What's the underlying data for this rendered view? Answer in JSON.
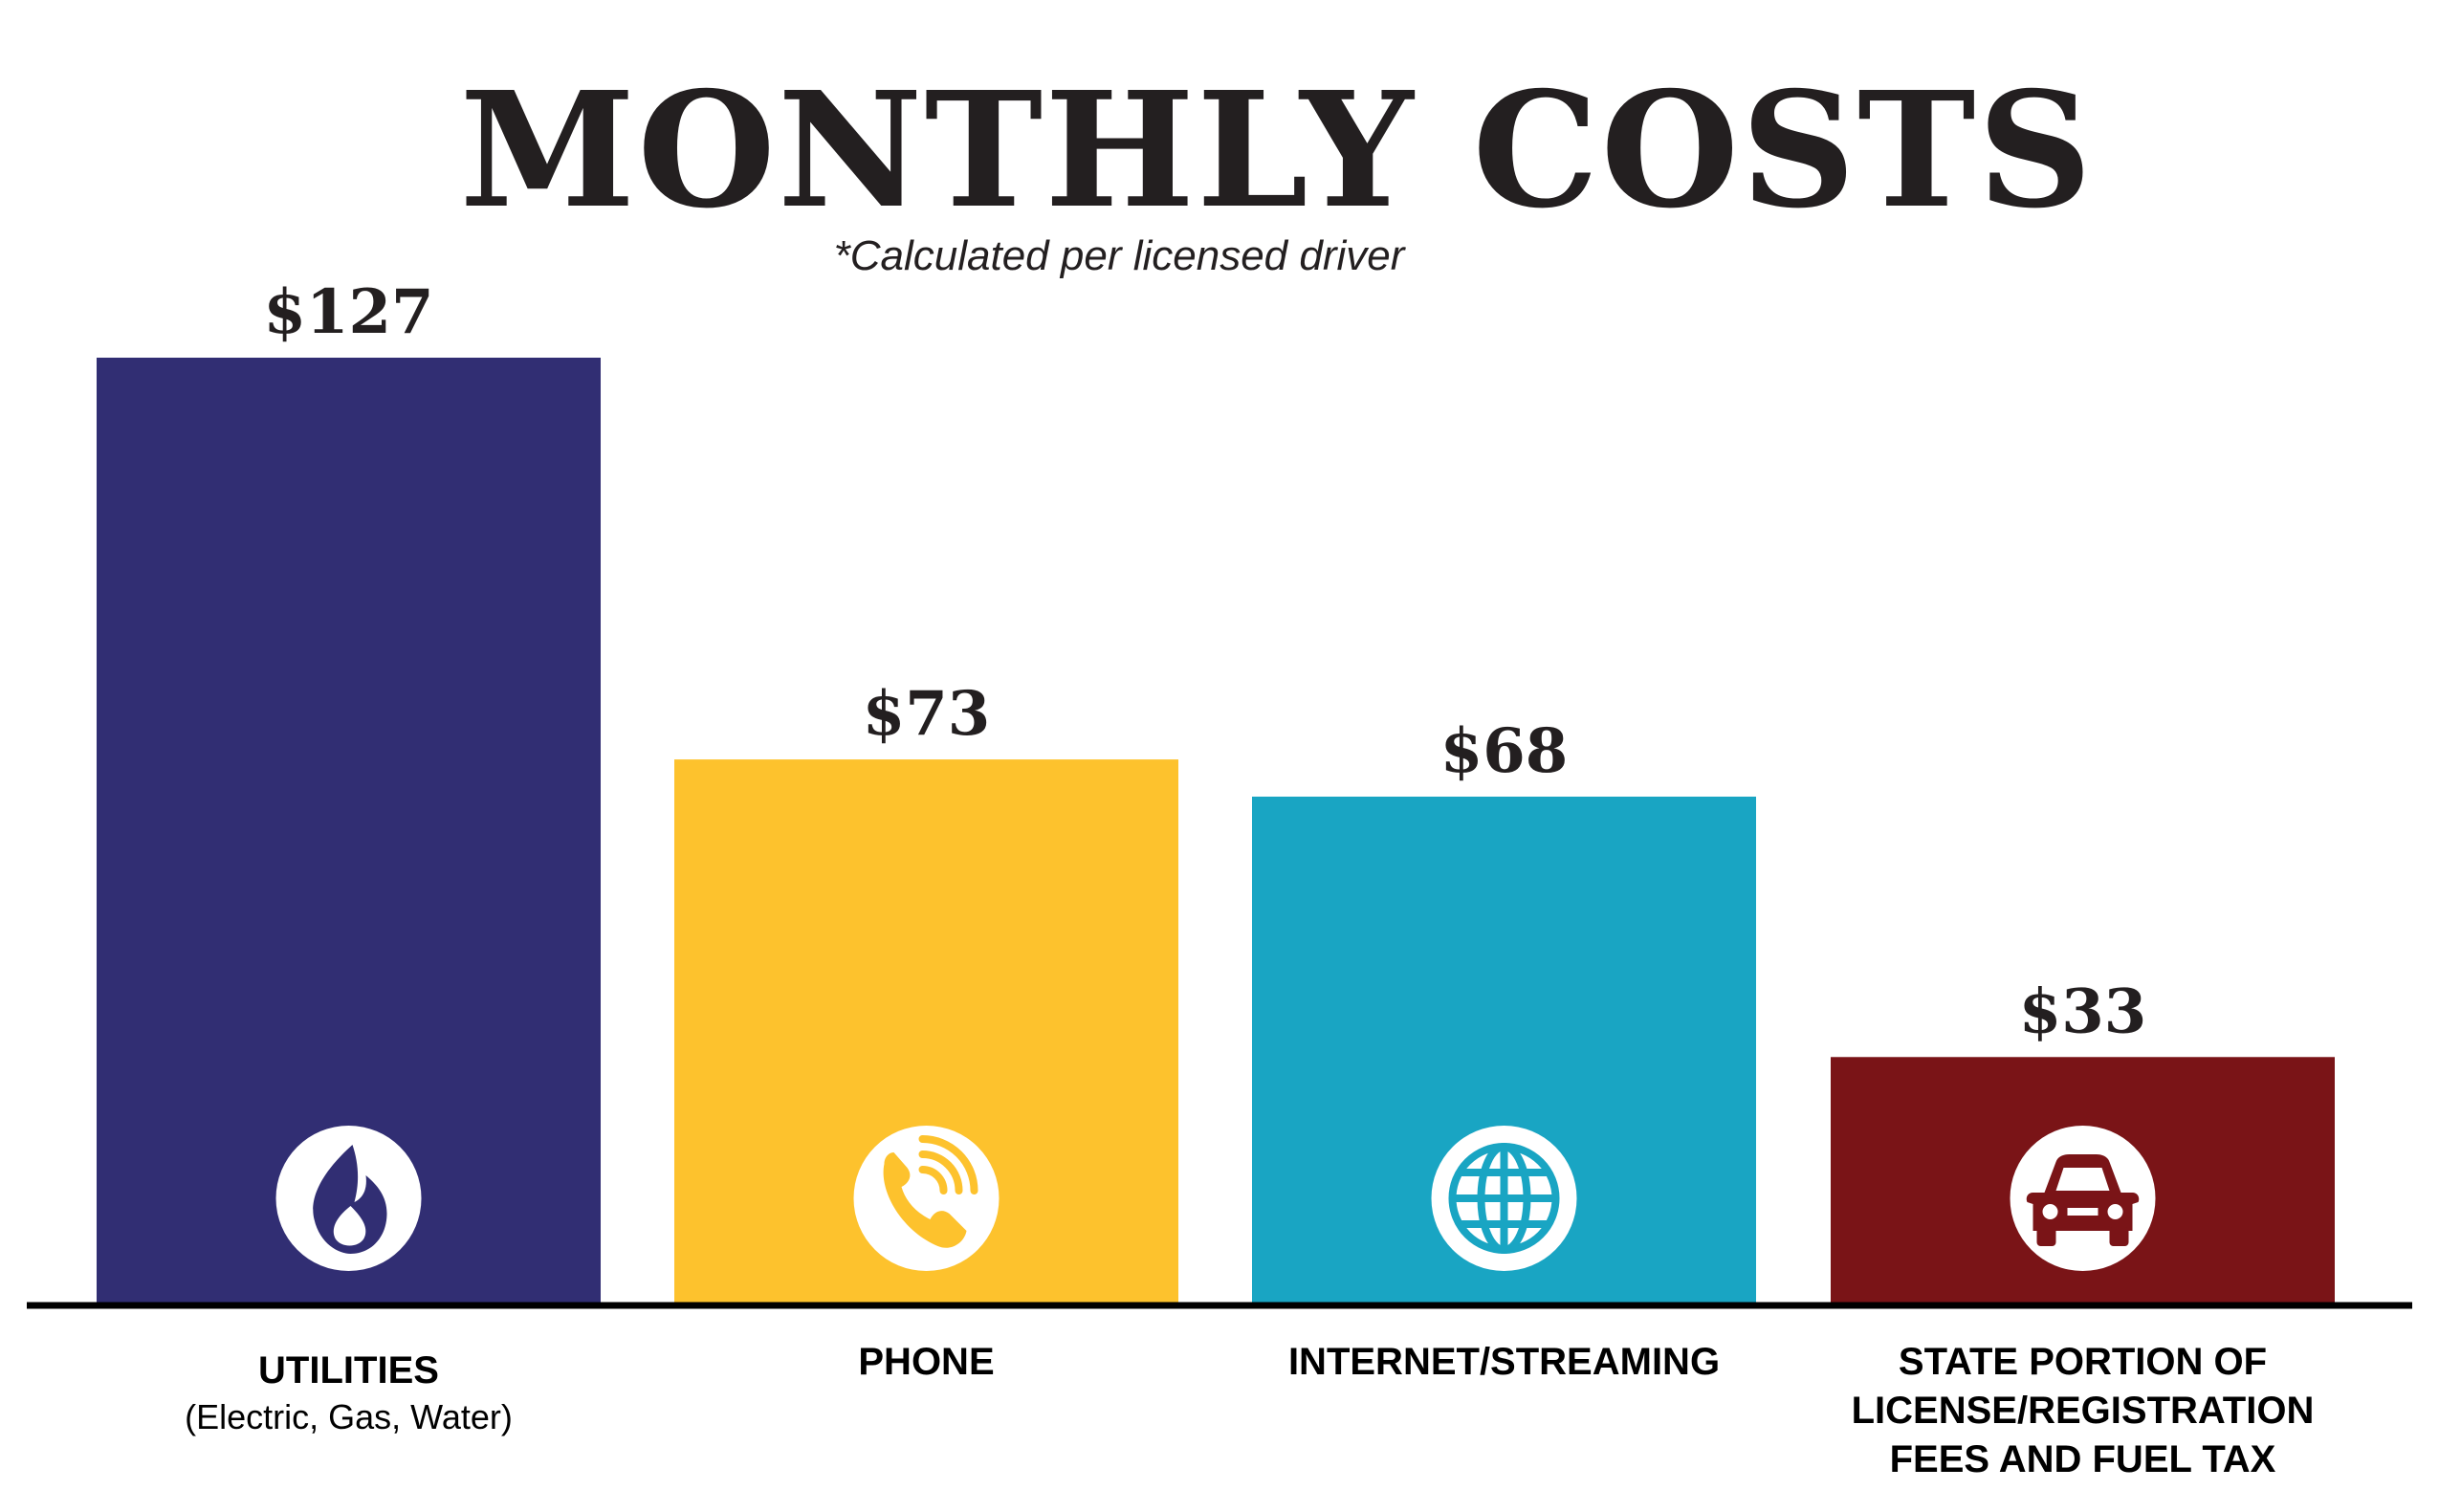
{
  "chart_data": {
    "type": "bar",
    "title": "MONTHLY COSTS",
    "subtitle": "*Calculated per licensed driver",
    "ylim": [
      0,
      127
    ],
    "grid": false,
    "categories": [
      {
        "label_lines": [
          "UTILITIES"
        ],
        "sublabel": "(Electric, Gas, Water)",
        "value": 127,
        "value_label": "$127",
        "color": "#312e73",
        "icon": "flame-icon"
      },
      {
        "label_lines": [
          "PHONE"
        ],
        "sublabel": "",
        "value": 73,
        "value_label": "$73",
        "color": "#fdc22d",
        "icon": "phone-icon"
      },
      {
        "label_lines": [
          "INTERNET/STREAMING"
        ],
        "sublabel": "",
        "value": 68,
        "value_label": "$68",
        "color": "#19a5c3",
        "icon": "globe-icon"
      },
      {
        "label_lines": [
          "STATE PORTION OF",
          "LICENSE/REGISTRATION",
          "FEES AND FUEL TAX"
        ],
        "sublabel": "",
        "value": 33,
        "value_label": "$33",
        "color": "#7a1417",
        "icon": "car-icon"
      }
    ]
  }
}
